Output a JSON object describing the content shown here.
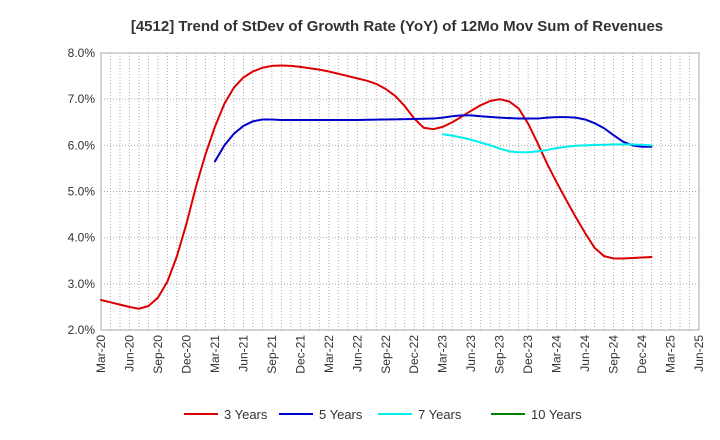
{
  "chart_data": {
    "type": "line",
    "title": "[4512]  Trend of StDev of Growth Rate (YoY) of 12Mo Mov Sum of Revenues",
    "xlabel": "",
    "ylabel": "",
    "y_ticks": [
      "2.0%",
      "3.0%",
      "4.0%",
      "5.0%",
      "6.0%",
      "7.0%",
      "8.0%"
    ],
    "ylim": [
      2.0,
      8.0
    ],
    "x_ticks": [
      "Mar-20",
      "Jun-20",
      "Sep-20",
      "Dec-20",
      "Mar-21",
      "Jun-21",
      "Sep-21",
      "Dec-21",
      "Mar-22",
      "Jun-22",
      "Sep-22",
      "Dec-22",
      "Mar-23",
      "Jun-23",
      "Sep-23",
      "Dec-23",
      "Mar-24",
      "Jun-24",
      "Sep-24",
      "Dec-24",
      "Mar-25",
      "Jun-25"
    ],
    "x_unit": "months since Mar-20",
    "xlim": [
      0,
      63
    ],
    "grid": true,
    "legend_position": "bottom",
    "series": [
      {
        "name": "3 Years",
        "color": "#dd0000",
        "points": [
          [
            0,
            2.65
          ],
          [
            1,
            2.6
          ],
          [
            2,
            2.55
          ],
          [
            3,
            2.5
          ],
          [
            4,
            2.46
          ],
          [
            5,
            2.52
          ],
          [
            6,
            2.7
          ],
          [
            7,
            3.05
          ],
          [
            8,
            3.6
          ],
          [
            9,
            4.3
          ],
          [
            10,
            5.1
          ],
          [
            11,
            5.8
          ],
          [
            12,
            6.4
          ],
          [
            13,
            6.9
          ],
          [
            14,
            7.25
          ],
          [
            15,
            7.47
          ],
          [
            16,
            7.6
          ],
          [
            17,
            7.68
          ],
          [
            18,
            7.72
          ],
          [
            19,
            7.73
          ],
          [
            20,
            7.72
          ],
          [
            21,
            7.7
          ],
          [
            22,
            7.67
          ],
          [
            23,
            7.64
          ],
          [
            24,
            7.6
          ],
          [
            25,
            7.55
          ],
          [
            26,
            7.5
          ],
          [
            27,
            7.45
          ],
          [
            28,
            7.4
          ],
          [
            29,
            7.33
          ],
          [
            30,
            7.22
          ],
          [
            31,
            7.07
          ],
          [
            32,
            6.85
          ],
          [
            33,
            6.58
          ],
          [
            34,
            6.38
          ],
          [
            35,
            6.35
          ],
          [
            36,
            6.4
          ],
          [
            37,
            6.5
          ],
          [
            38,
            6.62
          ],
          [
            39,
            6.75
          ],
          [
            40,
            6.87
          ],
          [
            41,
            6.96
          ],
          [
            42,
            7.0
          ],
          [
            43,
            6.95
          ],
          [
            44,
            6.8
          ],
          [
            45,
            6.47
          ],
          [
            46,
            6.05
          ],
          [
            47,
            5.6
          ],
          [
            48,
            5.2
          ],
          [
            49,
            4.82
          ],
          [
            50,
            4.45
          ],
          [
            51,
            4.1
          ],
          [
            52,
            3.78
          ],
          [
            53,
            3.6
          ],
          [
            54,
            3.55
          ],
          [
            55,
            3.55
          ],
          [
            56,
            3.56
          ],
          [
            57,
            3.57
          ],
          [
            58,
            3.58
          ]
        ]
      },
      {
        "name": "5 Years",
        "color": "#0000cc",
        "points": [
          [
            12,
            5.65
          ],
          [
            13,
            6.0
          ],
          [
            14,
            6.25
          ],
          [
            15,
            6.42
          ],
          [
            16,
            6.52
          ],
          [
            17,
            6.56
          ],
          [
            18,
            6.56
          ],
          [
            19,
            6.55
          ],
          [
            21,
            6.55
          ],
          [
            24,
            6.55
          ],
          [
            27,
            6.55
          ],
          [
            30,
            6.56
          ],
          [
            33,
            6.57
          ],
          [
            35,
            6.58
          ],
          [
            36,
            6.6
          ],
          [
            37,
            6.63
          ],
          [
            38,
            6.65
          ],
          [
            39,
            6.65
          ],
          [
            40,
            6.63
          ],
          [
            42,
            6.6
          ],
          [
            44,
            6.58
          ],
          [
            46,
            6.58
          ],
          [
            47,
            6.6
          ],
          [
            48,
            6.61
          ],
          [
            49,
            6.61
          ],
          [
            50,
            6.6
          ],
          [
            51,
            6.56
          ],
          [
            52,
            6.48
          ],
          [
            53,
            6.37
          ],
          [
            54,
            6.22
          ],
          [
            55,
            6.08
          ],
          [
            56,
            6.0
          ],
          [
            57,
            5.97
          ],
          [
            58,
            5.97
          ]
        ]
      },
      {
        "name": "7 Years",
        "color": "#00eeee",
        "points": [
          [
            36,
            6.24
          ],
          [
            37,
            6.21
          ],
          [
            38,
            6.17
          ],
          [
            39,
            6.12
          ],
          [
            40,
            6.06
          ],
          [
            41,
            6.0
          ],
          [
            42,
            5.93
          ],
          [
            43,
            5.87
          ],
          [
            44,
            5.85
          ],
          [
            45,
            5.85
          ],
          [
            46,
            5.87
          ],
          [
            47,
            5.9
          ],
          [
            48,
            5.94
          ],
          [
            49,
            5.97
          ],
          [
            50,
            5.99
          ],
          [
            51,
            6.0
          ],
          [
            52,
            6.01
          ],
          [
            53,
            6.01
          ],
          [
            54,
            6.02
          ],
          [
            55,
            6.02
          ],
          [
            56,
            6.02
          ],
          [
            57,
            6.01
          ],
          [
            58,
            6.0
          ]
        ]
      },
      {
        "name": "10 Years",
        "color": "#008000",
        "points": []
      }
    ]
  }
}
